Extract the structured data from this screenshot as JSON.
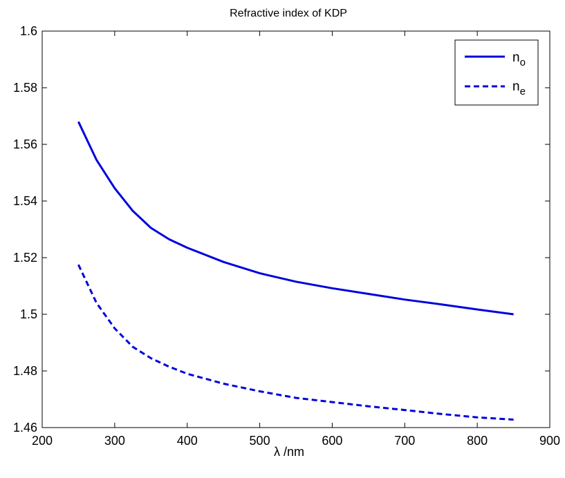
{
  "chart_data": {
    "type": "line",
    "title": "Refractive index of KDP",
    "xlabel_symbol": "λ",
    "xlabel": "/nm",
    "ylabel": "",
    "xlim": [
      200,
      900
    ],
    "ylim": [
      1.46,
      1.6
    ],
    "xticks": [
      200,
      300,
      400,
      500,
      600,
      700,
      800,
      900
    ],
    "yticks": [
      1.46,
      1.48,
      1.5,
      1.52,
      1.54,
      1.56,
      1.58,
      1.6
    ],
    "ytick_labels": [
      "1.46",
      "1.48",
      "1.5",
      "1.52",
      "1.54",
      "1.56",
      "1.58",
      "1.6"
    ],
    "grid": false,
    "legend_position": "top-right",
    "series": [
      {
        "name": "n",
        "subscript": "o",
        "style": "solid",
        "color": "#0000dd",
        "x": [
          250,
          275,
          300,
          325,
          350,
          375,
          400,
          450,
          500,
          550,
          600,
          650,
          700,
          750,
          800,
          850
        ],
        "y": [
          1.568,
          1.5545,
          1.5445,
          1.5365,
          1.5305,
          1.5265,
          1.5235,
          1.5185,
          1.5145,
          1.5115,
          1.5092,
          1.5072,
          1.5052,
          1.5035,
          1.5017,
          1.5
        ]
      },
      {
        "name": "n",
        "subscript": "e",
        "style": "dashed",
        "color": "#0000dd",
        "x": [
          250,
          275,
          300,
          325,
          350,
          375,
          400,
          450,
          500,
          550,
          600,
          650,
          700,
          750,
          800,
          850
        ],
        "y": [
          1.5175,
          1.504,
          1.495,
          1.4885,
          1.4845,
          1.4815,
          1.479,
          1.4755,
          1.4728,
          1.4705,
          1.469,
          1.4675,
          1.4662,
          1.4648,
          1.4636,
          1.4628
        ]
      }
    ]
  }
}
